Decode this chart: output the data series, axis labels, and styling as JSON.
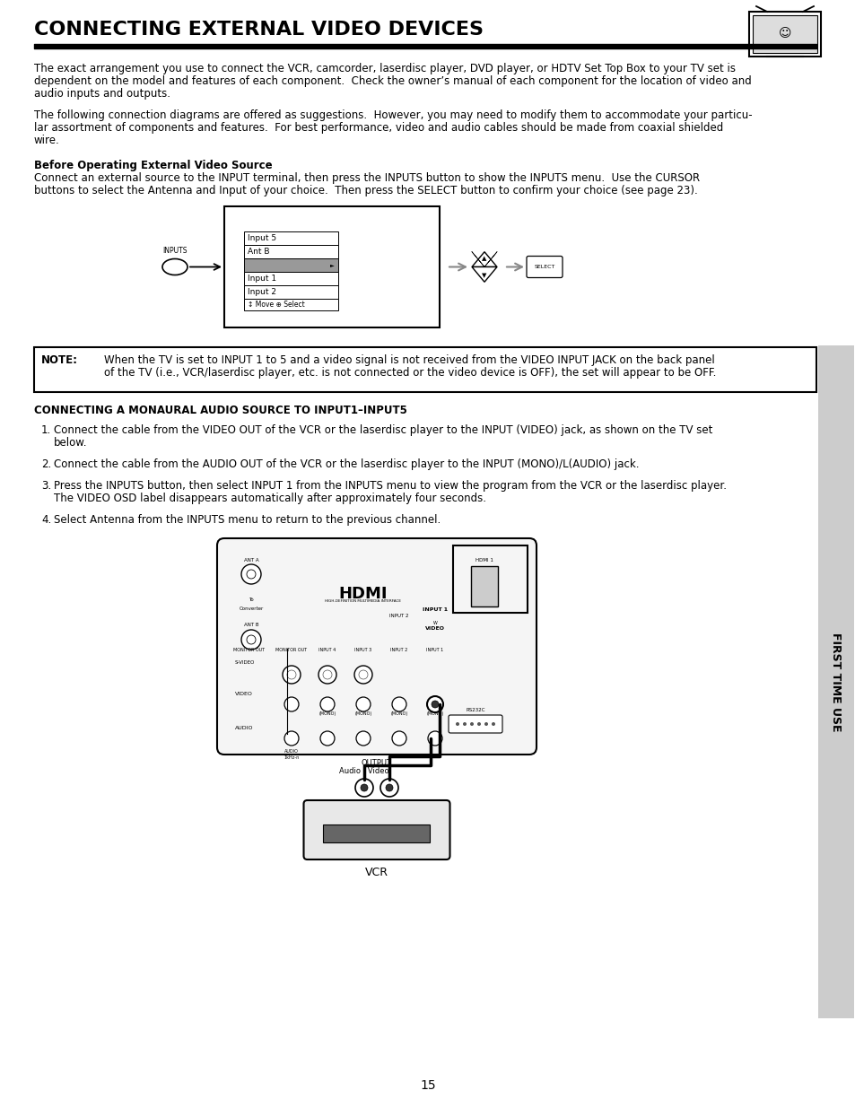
{
  "title": "CONNECTING EXTERNAL VIDEO DEVICES",
  "page_number": "15",
  "bg_color": "#ffffff",
  "sidebar_color": "#cccccc",
  "sidebar_text": "FIRST TIME USE",
  "para1_lines": [
    "The exact arrangement you use to connect the VCR, camcorder, laserdisc player, DVD player, or HDTV Set Top Box to your TV set is",
    "dependent on the model and features of each component.  Check the owner’s manual of each component for the location of video and",
    "audio inputs and outputs."
  ],
  "para2_lines": [
    "The following connection diagrams are offered as suggestions.  However, you may need to modify them to accommodate your particu-",
    "lar assortment of components and features.  For best performance, video and audio cables should be made from coaxial shielded",
    "wire."
  ],
  "before_heading": "Before Operating External Video Source",
  "before_lines": [
    "Connect an external source to the INPUT terminal, then press the INPUTS button to show the INPUTS menu.  Use the CURSOR",
    "buttons to select the Antenna and Input of your choice.  Then press the SELECT button to confirm your choice (see page 23)."
  ],
  "note_label": "NOTE:",
  "note_lines": [
    "When the TV is set to INPUT 1 to 5 and a video signal is not received from the VIDEO INPUT JACK on the back panel",
    "of the TV (i.e., VCR/laserdisc player, etc. is not connected or the video device is OFF), the set will appear to be OFF."
  ],
  "mono_heading": "CONNECTING A MONAURAL AUDIO SOURCE TO INPUT1–INPUT5",
  "step1_lines": [
    "Connect the cable from the VIDEO OUT of the VCR or the laserdisc player to the INPUT (VIDEO) jack, as shown on the TV set",
    "below."
  ],
  "step2_lines": [
    "Connect the cable from the AUDIO OUT of the VCR or the laserdisc player to the INPUT (MONO)/L(AUDIO) jack."
  ],
  "step3_lines": [
    "Press the INPUTS button, then select INPUT 1 from the INPUTS menu to view the program from the VCR or the laserdisc player.",
    "The VIDEO OSD label disappears automatically after approximately four seconds."
  ],
  "step4_lines": [
    "Select Antenna from the INPUTS menu to return to the previous channel."
  ]
}
